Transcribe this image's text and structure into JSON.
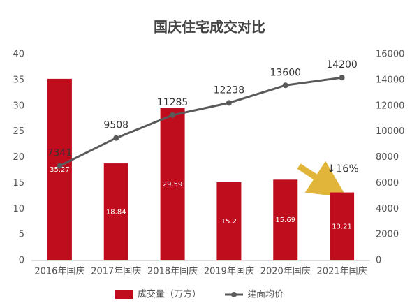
{
  "chart_data": {
    "type": "bar",
    "title": "国庆住宅成交对比",
    "categories": [
      "2016年国庆",
      "2017年国庆",
      "2018年国庆",
      "2019年国庆",
      "2020年国庆",
      "2021年国庆"
    ],
    "series": [
      {
        "name": "成交量（万方）",
        "type": "bar",
        "color": "#c00d1e",
        "values": [
          35.27,
          18.84,
          29.59,
          15.2,
          15.69,
          13.21
        ]
      },
      {
        "name": "建面均价",
        "type": "line",
        "color": "#5a5a5a",
        "axis": "y2",
        "values": [
          7341,
          9508,
          11285,
          12238,
          13600,
          14200
        ]
      }
    ],
    "ylim": [
      0,
      40
    ],
    "yticks": [
      0,
      5,
      10,
      15,
      20,
      25,
      30,
      35,
      40
    ],
    "y2lim": [
      0,
      16000
    ],
    "y2ticks": [
      0,
      2000,
      4000,
      6000,
      8000,
      10000,
      12000,
      14000,
      16000
    ],
    "annotation": "↓16%",
    "legend": "bottom"
  }
}
